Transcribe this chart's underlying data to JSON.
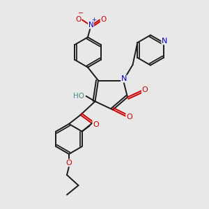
{
  "bg_color": "#e8e8e8",
  "C": "#1a1a1a",
  "N": "#0000cc",
  "O": "#cc0000",
  "H_col": "#4a8a8a",
  "lw": 1.4,
  "figsize": [
    3.0,
    3.0
  ],
  "dpi": 100,
  "xlim": [
    0,
    10
  ],
  "ylim": [
    0,
    10
  ]
}
